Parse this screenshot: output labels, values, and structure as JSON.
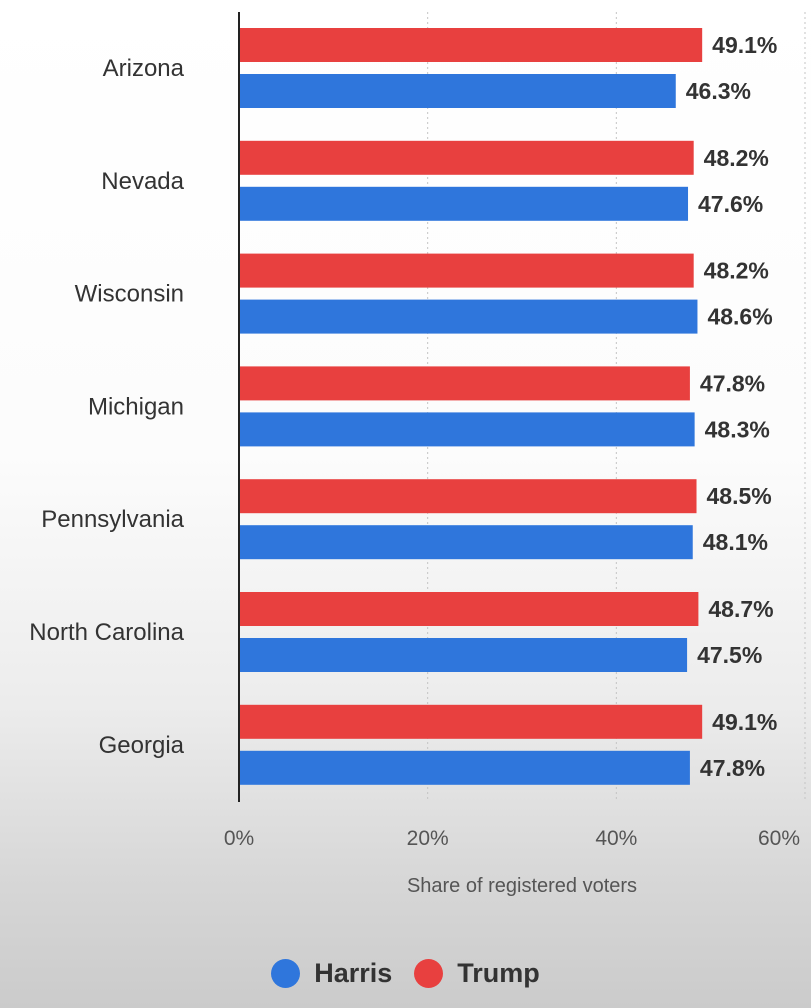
{
  "chart_data": {
    "type": "bar",
    "orientation": "horizontal",
    "categories": [
      "Arizona",
      "Nevada",
      "Wisconsin",
      "Michigan",
      "Pennsylvania",
      "North Carolina",
      "Georgia"
    ],
    "series": [
      {
        "name": "Trump",
        "color": "#e8403f",
        "values": [
          49.1,
          48.2,
          48.2,
          47.8,
          48.5,
          48.7,
          49.1
        ],
        "labels": [
          "49.1%",
          "48.2%",
          "48.2%",
          "47.8%",
          "48.5%",
          "48.7%",
          "49.1%"
        ]
      },
      {
        "name": "Harris",
        "color": "#2f76dc",
        "values": [
          46.3,
          47.6,
          48.6,
          48.3,
          48.1,
          47.5,
          47.8
        ],
        "labels": [
          "46.3%",
          "47.6%",
          "48.6%",
          "48.3%",
          "48.1%",
          "47.5%",
          "47.8%"
        ]
      }
    ],
    "xlim": [
      0,
      60
    ],
    "xticks": [
      0,
      20,
      40,
      60
    ],
    "xtick_labels": [
      "0%",
      "20%",
      "40%",
      "60%"
    ],
    "xlabel": "Share of registered voters",
    "ylabel": "",
    "title": "",
    "grid": true,
    "legend_placement": "bottom-center",
    "legend": [
      {
        "name": "Harris",
        "color": "#2f76dc"
      },
      {
        "name": "Trump",
        "color": "#e8403f"
      }
    ]
  }
}
